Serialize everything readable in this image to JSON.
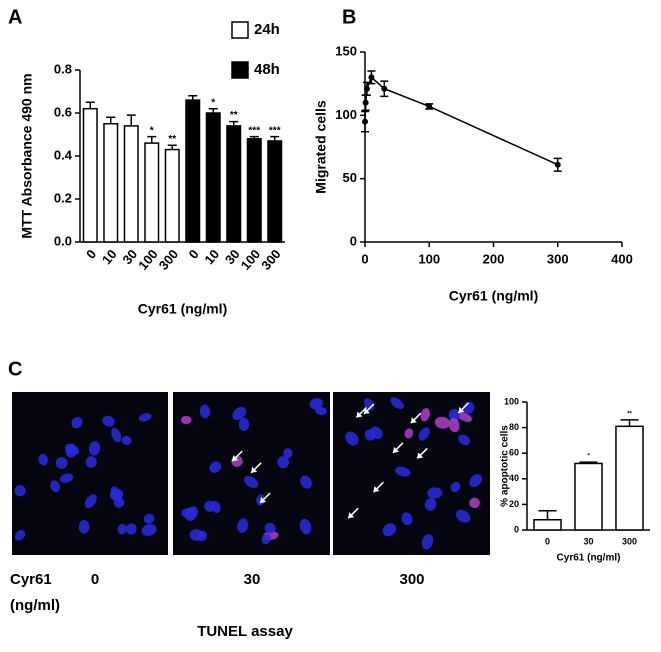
{
  "panels": [
    "A",
    "B",
    "C"
  ],
  "chart_data": [
    {
      "type": "bar",
      "ylabel": "MTT Absorbance 490 nm",
      "xlabel": "Cyr61 (ng/ml)",
      "categories": [
        "0",
        "10",
        "30",
        "100",
        "300"
      ],
      "series": [
        {
          "name": "24h",
          "color": "#ffffff",
          "values": [
            0.62,
            0.55,
            0.54,
            0.46,
            0.43
          ],
          "errors": [
            0.03,
            0.03,
            0.05,
            0.03,
            0.02
          ],
          "annotations": [
            null,
            null,
            null,
            "*",
            "**"
          ]
        },
        {
          "name": "48h",
          "color": "#000000",
          "values": [
            0.66,
            0.6,
            0.54,
            0.48,
            0.47
          ],
          "errors": [
            0.02,
            0.02,
            0.02,
            0.01,
            0.02
          ],
          "annotations": [
            null,
            "*",
            "**",
            "***",
            "***"
          ]
        }
      ],
      "ylim": [
        0,
        0.8
      ],
      "yticks": [
        {
          "value": 0,
          "label": "0.0"
        },
        0.2,
        0.4,
        0.6,
        0.8
      ]
    },
    {
      "type": "line",
      "ylabel": "Migrated cells",
      "xlabel": "Cyr61 (ng/ml)",
      "x": [
        0,
        1,
        3,
        10,
        30,
        100,
        300
      ],
      "series": [
        {
          "color": "#000000",
          "values": [
            95,
            110,
            121,
            130,
            121,
            107,
            61
          ],
          "errors": [
            8,
            6,
            5,
            5,
            6,
            2,
            5
          ]
        }
      ],
      "xlim": [
        0,
        400
      ],
      "xticks": [
        0,
        100,
        200,
        300,
        400
      ],
      "ylim": [
        0,
        150
      ],
      "yticks": [
        0,
        50,
        100,
        150
      ]
    },
    {
      "type": "bar",
      "ylabel": "% apoptotic cells",
      "xlabel": "Cyr61 (ng/ml)",
      "categories": [
        "0",
        "30",
        "300"
      ],
      "series": [
        {
          "color": "#ffffff",
          "values": [
            8,
            52,
            81
          ],
          "errors": [
            7,
            1,
            5
          ],
          "annotations": [
            null,
            "*",
            "**"
          ]
        }
      ],
      "ylim": [
        0,
        100
      ],
      "yticks": [
        0,
        20,
        40,
        60,
        80,
        100
      ]
    }
  ],
  "tunel": {
    "row_label": [
      "Cyr61",
      "(ng/ml)"
    ],
    "doses": [
      "0",
      "30",
      "300"
    ],
    "caption": "TUNEL assay"
  }
}
